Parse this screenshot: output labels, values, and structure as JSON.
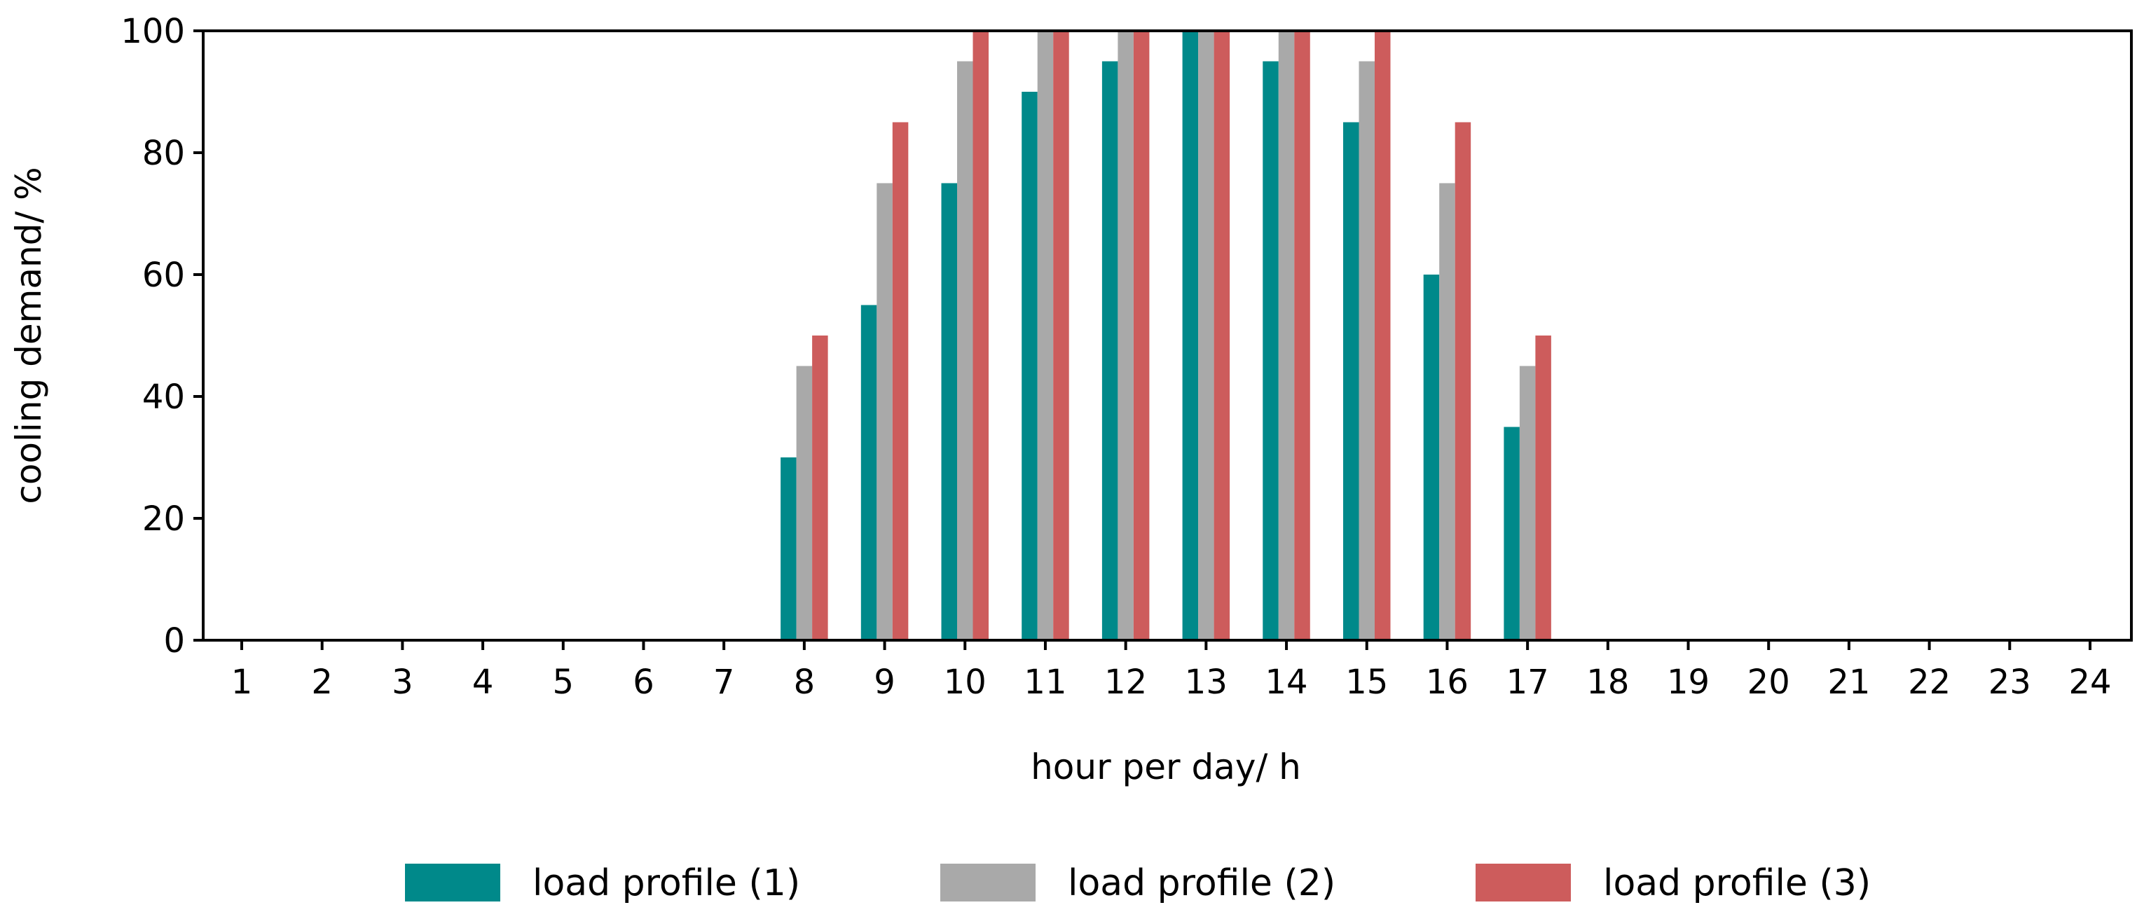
{
  "chart_data": {
    "type": "bar",
    "title": "",
    "xlabel": "hour per day/ h",
    "ylabel": "cooling demand/ %",
    "ylim": [
      0,
      100
    ],
    "yticks": [
      0,
      20,
      40,
      60,
      80,
      100
    ],
    "grid": false,
    "legend_position": "bottom-center",
    "categories": [
      "1",
      "2",
      "3",
      "4",
      "5",
      "6",
      "7",
      "8",
      "9",
      "10",
      "11",
      "12",
      "13",
      "14",
      "15",
      "16",
      "17",
      "18",
      "19",
      "20",
      "21",
      "22",
      "23",
      "24"
    ],
    "series": [
      {
        "name": "load profile (1)",
        "color": "#00898a",
        "values": [
          0,
          0,
          0,
          0,
          0,
          0,
          0,
          30,
          55,
          75,
          90,
          95,
          100,
          95,
          85,
          60,
          35,
          0,
          0,
          0,
          0,
          0,
          0,
          0
        ]
      },
      {
        "name": "load profile (2)",
        "color": "#a9a9a9",
        "values": [
          0,
          0,
          0,
          0,
          0,
          0,
          0,
          45,
          75,
          95,
          100,
          100,
          100,
          100,
          95,
          75,
          45,
          0,
          0,
          0,
          0,
          0,
          0,
          0
        ]
      },
      {
        "name": "load profile (3)",
        "color": "#cd5c5c",
        "values": [
          0,
          0,
          0,
          0,
          0,
          0,
          0,
          50,
          85,
          100,
          100,
          100,
          100,
          100,
          100,
          85,
          50,
          0,
          0,
          0,
          0,
          0,
          0,
          0
        ]
      }
    ]
  }
}
